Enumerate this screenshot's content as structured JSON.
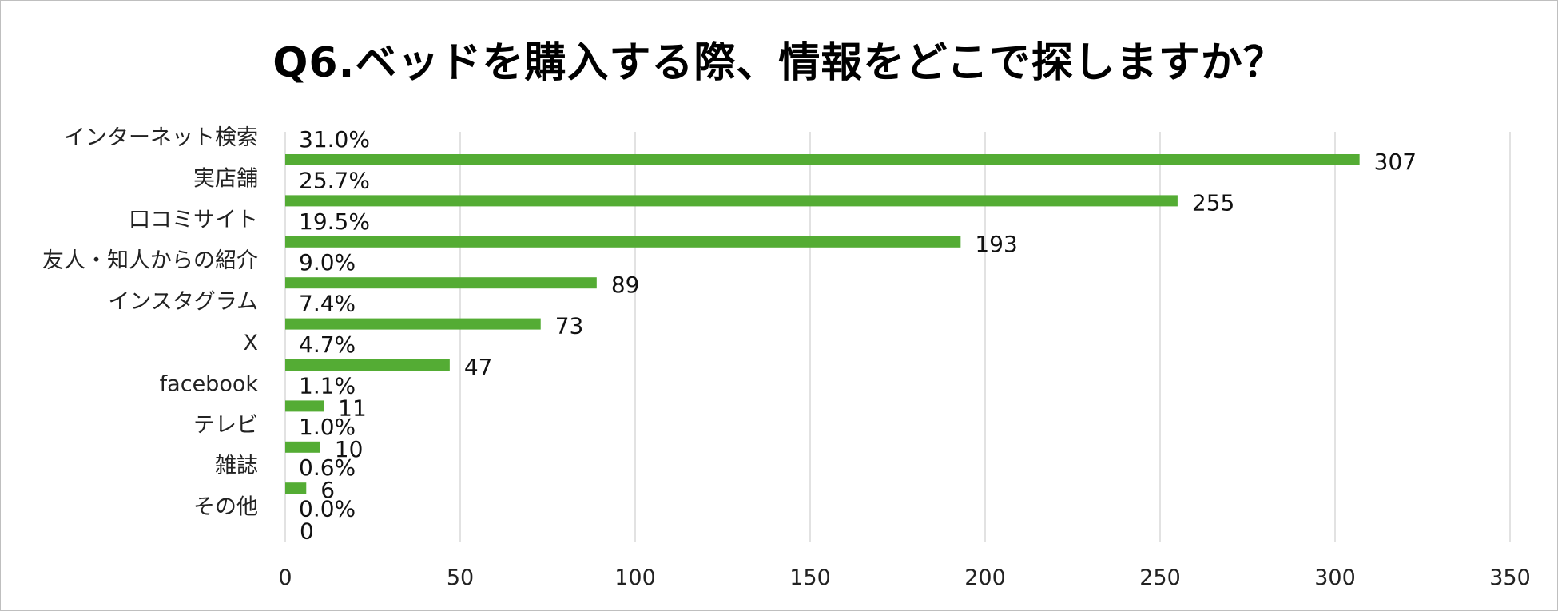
{
  "chart_data": {
    "type": "bar",
    "orientation": "horizontal",
    "title": "Q6.ベッドを購入する際、情報をどこで探しますか？",
    "categories": [
      "インターネット検索",
      "実店舗",
      "口コミサイト",
      "友人・知人からの紹介",
      "インスタグラム",
      "X",
      "facebook",
      "テレビ",
      "雑誌",
      "その他"
    ],
    "values": [
      307,
      255,
      193,
      89,
      73,
      47,
      11,
      10,
      6,
      0
    ],
    "percent_labels": [
      "31.0%",
      "25.7%",
      "19.5%",
      "9.0%",
      "7.4%",
      "4.7%",
      "1.1%",
      "1.0%",
      "0.6%",
      "0.0%"
    ],
    "xlim": [
      0,
      350
    ],
    "xticks": [
      0,
      50,
      100,
      150,
      200,
      250,
      300,
      350
    ],
    "grid": "vertical",
    "bar_color": "#54ac34",
    "grid_color": "#d9d9d9"
  }
}
